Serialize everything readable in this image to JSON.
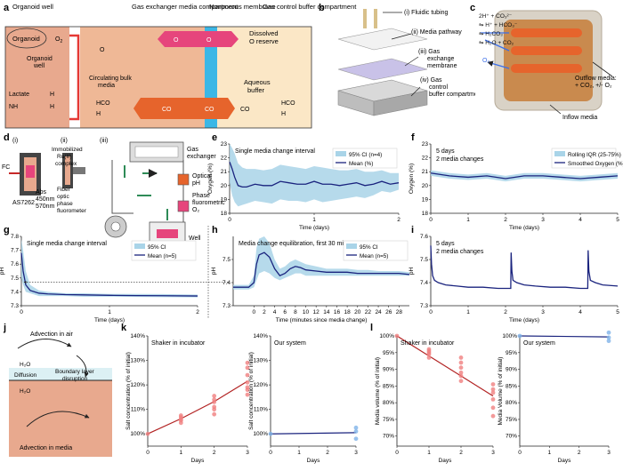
{
  "colors": {
    "salmon": "#e8a98e",
    "navy": "#1a237e",
    "band": "#a9d4e8",
    "pink": "#e6457c",
    "orange": "#e6642c",
    "blue": "#3bb7e6",
    "cream": "#fbe7c6",
    "red": "#b22222"
  },
  "panels": {
    "a": "a",
    "b": "b",
    "c": "c",
    "d": "d",
    "e": "e",
    "f": "f",
    "g": "g",
    "h": "h",
    "i": "i",
    "j": "j",
    "k": "k",
    "l": "l"
  },
  "panel_a": {
    "headers": [
      "Organoid well",
      "Gas exchanger media compartment",
      "Nonporous membrane",
      "Gas control buffer compartment"
    ],
    "organoid": "Organoid",
    "o2": "O",
    "o2_sub": "2",
    "organoid_well": [
      "Organoid",
      "well"
    ],
    "lactate": "Lactate",
    "nh4": "NH",
    "h_plus": "H",
    "circ": [
      "Circulating bulk",
      "media"
    ],
    "dissolved": [
      "Dissolved",
      "O",
      "reserve"
    ],
    "aqueous": [
      "Aqueous",
      "buffer"
    ],
    "co2": "CO",
    "hco3": "HCO"
  },
  "panel_b": {
    "labels": [
      "(i) Fluidic tubing",
      "(ii) Media pathway",
      "(iii) Gas",
      "exchange",
      "membrane",
      "(iv) Gas",
      "control",
      "buffer compartment"
    ]
  },
  "panel_c": {
    "eq": [
      "2H⁺ + CO₃²⁻",
      "⇋ H⁺ + HCO₃⁻",
      "⇋ H₂CO₃",
      "⇋ H₂O + CO₂"
    ],
    "o2": "O₂",
    "outflow": [
      "Outflow media:",
      "+ CO₂, +/- O₂"
    ],
    "inflow": "Inflow media"
  },
  "panel_d": {
    "sub": [
      "(i)",
      "(ii)",
      "(iii)"
    ],
    "fc": "FC",
    "as": "AS7262",
    "abs": [
      "Abs",
      "450nm",
      "570nm"
    ],
    "ru": [
      "Immobilized",
      "Ru(II)",
      "complex"
    ],
    "fiber": [
      "Fiber",
      "optic",
      "phase",
      "fluorometer"
    ],
    "gas": [
      "Gas",
      "exchanger"
    ],
    "optical": [
      "Optical",
      "pH"
    ],
    "phase": [
      "Phase",
      "fluorometric",
      "O₂"
    ],
    "well": "Well"
  },
  "panel_j": {
    "air": "Advection in air",
    "h2o": "H₂O",
    "diffusion": "Diffusion",
    "boundary": [
      "Boundary layer",
      "disruption"
    ],
    "media": "Advection in media"
  },
  "chart_data": [
    {
      "id": "e",
      "type": "line",
      "title": "Single media change interval",
      "xlabel": "Time (days)",
      "ylabel": "Oxygen (%)",
      "xlim": [
        0,
        2
      ],
      "ylim": [
        18,
        23
      ],
      "xticks": [
        0,
        1,
        2
      ],
      "yticks": [
        18,
        19,
        20,
        21,
        22,
        23
      ],
      "legend": [
        "95% CI (n=4)",
        "Mean (%)"
      ],
      "x": [
        0,
        0.03,
        0.06,
        0.1,
        0.15,
        0.2,
        0.3,
        0.4,
        0.5,
        0.6,
        0.7,
        0.8,
        0.9,
        1.0,
        1.1,
        1.2,
        1.3,
        1.4,
        1.5,
        1.6,
        1.7,
        1.8,
        1.9,
        2.0
      ],
      "mean": [
        21.7,
        21.2,
        20.6,
        20.0,
        19.9,
        19.9,
        20.1,
        20.0,
        20.0,
        20.3,
        20.2,
        20.1,
        20.1,
        20.3,
        20.1,
        20.1,
        20.0,
        20.1,
        20.2,
        20.0,
        20.1,
        20.3,
        20.1,
        20.2
      ],
      "lo": [
        20.2,
        19.3,
        18.8,
        18.5,
        18.6,
        18.7,
        18.9,
        18.8,
        18.7,
        19.0,
        18.9,
        18.9,
        18.8,
        19.0,
        18.8,
        18.9,
        19.0,
        19.1,
        19.2,
        19.1,
        19.3,
        19.6,
        19.5,
        19.7
      ],
      "hi": [
        23.0,
        22.7,
        22.3,
        21.6,
        21.3,
        21.2,
        21.2,
        21.1,
        21.2,
        21.5,
        21.4,
        21.3,
        21.2,
        21.4,
        21.3,
        21.2,
        21.1,
        21.1,
        21.2,
        21.0,
        21.0,
        21.1,
        20.9,
        20.9
      ]
    },
    {
      "id": "f",
      "type": "line",
      "title": "5 days",
      "subtitle": "2 media changes",
      "xlabel": "Time (days)",
      "ylabel": "Oxygen (%)",
      "xlim": [
        0,
        5
      ],
      "ylim": [
        18,
        23
      ],
      "xticks": [
        0,
        1,
        2,
        3,
        4,
        5
      ],
      "yticks": [
        18,
        19,
        20,
        21,
        22,
        23
      ],
      "legend": [
        "Rolling IQR (25-75%)",
        "Smoothed Oxygen (%)"
      ],
      "x": [
        0,
        0.5,
        1,
        1.5,
        2,
        2.5,
        3,
        3.5,
        4,
        4.5,
        5
      ],
      "mean": [
        20.9,
        20.7,
        20.6,
        20.7,
        20.5,
        20.7,
        20.7,
        20.6,
        20.5,
        20.6,
        20.7
      ],
      "lo": [
        20.7,
        20.5,
        20.4,
        20.5,
        20.3,
        20.5,
        20.5,
        20.4,
        20.3,
        20.4,
        20.5
      ],
      "hi": [
        21.1,
        20.9,
        20.8,
        20.9,
        20.7,
        20.9,
        20.9,
        20.8,
        20.7,
        20.8,
        20.9
      ]
    },
    {
      "id": "g",
      "type": "line",
      "title": "Single media change interval",
      "xlabel": "Time (days)",
      "ylabel": "pH",
      "xlim": [
        0,
        2
      ],
      "ylim": [
        7.3,
        7.8
      ],
      "xticks": [
        0,
        1,
        2
      ],
      "yticks": [
        7.3,
        7.4,
        7.5,
        7.6,
        7.7,
        7.8
      ],
      "legend": [
        "95% CI",
        "Mean (n=5)"
      ],
      "x": [
        0,
        0.02,
        0.05,
        0.1,
        0.2,
        0.3,
        0.5,
        0.7,
        1.0,
        1.3,
        1.6,
        2.0
      ],
      "mean": [
        7.68,
        7.55,
        7.45,
        7.41,
        7.39,
        7.385,
        7.38,
        7.378,
        7.375,
        7.373,
        7.372,
        7.37
      ],
      "lo": [
        7.5,
        7.45,
        7.4,
        7.39,
        7.37,
        7.37,
        7.37,
        7.365,
        7.365,
        7.363,
        7.362,
        7.36
      ],
      "hi": [
        7.78,
        7.7,
        7.55,
        7.45,
        7.41,
        7.4,
        7.39,
        7.39,
        7.385,
        7.385,
        7.384,
        7.38
      ]
    },
    {
      "id": "h",
      "type": "line",
      "title": "Media change equilibration, first 30 mins",
      "xlabel": "Time (minutes since media change)",
      "ylabel": "pH",
      "xlim": [
        -4,
        30
      ],
      "ylim": [
        7.3,
        7.6
      ],
      "xticks": [
        0,
        2,
        4,
        6,
        8,
        10,
        12,
        14,
        16,
        18,
        20,
        22,
        24,
        26,
        28
      ],
      "yticks": [
        7.3,
        7.4,
        7.5
      ],
      "legend": [
        "95% CI",
        "Mean (n=5)"
      ],
      "x": [
        -4,
        -1,
        0,
        0.5,
        1,
        2,
        3,
        4,
        5,
        6,
        7,
        8,
        9,
        10,
        12,
        14,
        16,
        18,
        20,
        22,
        24,
        26,
        28,
        30
      ],
      "mean": [
        7.38,
        7.38,
        7.4,
        7.48,
        7.52,
        7.53,
        7.51,
        7.46,
        7.43,
        7.44,
        7.46,
        7.47,
        7.465,
        7.455,
        7.45,
        7.445,
        7.445,
        7.445,
        7.44,
        7.44,
        7.44,
        7.44,
        7.44,
        7.435
      ],
      "lo": [
        7.37,
        7.37,
        7.38,
        7.41,
        7.44,
        7.45,
        7.44,
        7.42,
        7.41,
        7.42,
        7.43,
        7.44,
        7.44,
        7.43,
        7.43,
        7.43,
        7.43,
        7.43,
        7.43,
        7.43,
        7.43,
        7.43,
        7.43,
        7.43
      ],
      "hi": [
        7.39,
        7.39,
        7.43,
        7.55,
        7.59,
        7.6,
        7.57,
        7.5,
        7.46,
        7.47,
        7.49,
        7.5,
        7.49,
        7.48,
        7.47,
        7.46,
        7.46,
        7.46,
        7.455,
        7.455,
        7.45,
        7.45,
        7.45,
        7.445
      ]
    },
    {
      "id": "i",
      "type": "line",
      "title": "5 days",
      "subtitle": "2 media changes",
      "xlabel": "Time (days)",
      "ylabel": "pH",
      "xlim": [
        0,
        5
      ],
      "ylim": [
        7.3,
        7.6
      ],
      "xticks": [
        0,
        1,
        2,
        3,
        4,
        5
      ],
      "yticks": [
        7.3,
        7.4,
        7.5,
        7.6
      ],
      "x": [
        0,
        0.02,
        0.05,
        0.1,
        0.2,
        0.4,
        0.7,
        1.0,
        1.4,
        1.8,
        2.14,
        2.15,
        2.17,
        2.2,
        2.3,
        2.5,
        2.8,
        3.2,
        3.6,
        4.0,
        4.2,
        4.21,
        4.23,
        4.27,
        4.4,
        4.6,
        5.0
      ],
      "mean": [
        7.56,
        7.48,
        7.43,
        7.41,
        7.4,
        7.39,
        7.385,
        7.38,
        7.38,
        7.375,
        7.375,
        7.53,
        7.45,
        7.41,
        7.4,
        7.39,
        7.385,
        7.38,
        7.38,
        7.375,
        7.375,
        7.54,
        7.45,
        7.41,
        7.4,
        7.39,
        7.385
      ]
    },
    {
      "id": "k1",
      "type": "scatter",
      "title": "Shaker in incubator",
      "xlabel": "Days",
      "ylabel": "Salt concentration (% of initial)",
      "xlim": [
        0,
        3
      ],
      "ylim": [
        95,
        140
      ],
      "xticks": [
        0,
        1,
        2,
        3
      ],
      "yticks": [
        100,
        110,
        120,
        130,
        140
      ],
      "points": [
        [
          0,
          100
        ],
        [
          1,
          104.5
        ],
        [
          1,
          105.5
        ],
        [
          1,
          106
        ],
        [
          1,
          106.8
        ],
        [
          1,
          107.5
        ],
        [
          2,
          108
        ],
        [
          2,
          110
        ],
        [
          2,
          111
        ],
        [
          2,
          113
        ],
        [
          2,
          114
        ],
        [
          2,
          115.5
        ],
        [
          3,
          116
        ],
        [
          3,
          118
        ],
        [
          3,
          119
        ],
        [
          3,
          121
        ],
        [
          3,
          124
        ],
        [
          3,
          127
        ],
        [
          3,
          129
        ]
      ],
      "fit": [
        [
          0,
          100
        ],
        [
          1,
          106.2
        ],
        [
          2,
          113.2
        ],
        [
          3,
          121.5
        ]
      ]
    },
    {
      "id": "k2",
      "type": "scatter",
      "title": "Our system",
      "xlabel": "Days",
      "ylabel": "Salt concentration (% of initial)",
      "xlim": [
        0,
        3
      ],
      "ylim": [
        95,
        140
      ],
      "xticks": [
        0,
        1,
        2,
        3
      ],
      "yticks": [
        100,
        110,
        120,
        130,
        140
      ],
      "points": [
        [
          0,
          100
        ],
        [
          3,
          98
        ],
        [
          3,
          101
        ],
        [
          3,
          102.5
        ]
      ],
      "fit": [
        [
          0,
          100
        ],
        [
          3,
          100.5
        ]
      ]
    },
    {
      "id": "l1",
      "type": "scatter",
      "title": "Shaker in incubator",
      "xlabel": "Days",
      "ylabel": "Media volume (% of initial)",
      "xlim": [
        0,
        3
      ],
      "ylim": [
        67,
        100
      ],
      "xticks": [
        0,
        1,
        2,
        3
      ],
      "yticks": [
        70,
        75,
        80,
        85,
        90,
        95,
        100
      ],
      "points": [
        [
          0,
          100
        ],
        [
          1,
          93.5
        ],
        [
          1,
          94.5
        ],
        [
          1,
          95
        ],
        [
          1,
          95.5
        ],
        [
          1,
          96
        ],
        [
          2,
          86.5
        ],
        [
          2,
          88
        ],
        [
          2,
          89
        ],
        [
          2,
          90.5
        ],
        [
          2,
          92
        ],
        [
          2,
          93.5
        ],
        [
          3,
          76
        ],
        [
          3,
          78.5
        ],
        [
          3,
          81
        ],
        [
          3,
          83
        ],
        [
          3,
          84
        ],
        [
          3,
          85.5
        ]
      ],
      "fit": [
        [
          0,
          100
        ],
        [
          3,
          82
        ]
      ]
    },
    {
      "id": "l2",
      "type": "scatter",
      "title": "Our system",
      "xlabel": "Days",
      "ylabel": "Media Volume (% of initial)",
      "xlim": [
        0,
        3
      ],
      "ylim": [
        67,
        100
      ],
      "xticks": [
        0,
        1,
        2,
        3
      ],
      "yticks": [
        70,
        75,
        80,
        85,
        90,
        95,
        100
      ],
      "points": [
        [
          0,
          100
        ],
        [
          3,
          98.5
        ],
        [
          3,
          99.5
        ],
        [
          3,
          101
        ]
      ],
      "fit": [
        [
          0,
          100
        ],
        [
          3,
          99.7
        ]
      ]
    }
  ]
}
